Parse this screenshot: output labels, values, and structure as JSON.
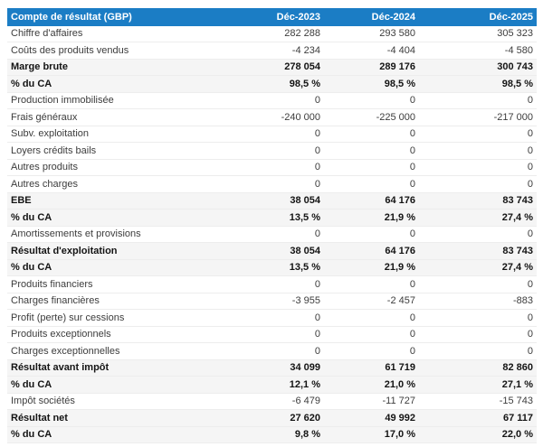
{
  "table": {
    "header": {
      "label": "Compte de résultat (GBP)",
      "col1": "Déc-2023",
      "col2": "Déc-2024",
      "col3": "Déc-2025"
    },
    "rows": [
      {
        "label": "Chiffre d'affaires",
        "values": [
          "282 288",
          "293 580",
          "305 323"
        ],
        "emphasis": false
      },
      {
        "label": "Coûts des produits vendus",
        "values": [
          "-4 234",
          "-4 404",
          "-4 580"
        ],
        "emphasis": false
      },
      {
        "label": "Marge brute",
        "values": [
          "278 054",
          "289 176",
          "300 743"
        ],
        "emphasis": true
      },
      {
        "label": "% du CA",
        "values": [
          "98,5 %",
          "98,5 %",
          "98,5 %"
        ],
        "emphasis": true
      },
      {
        "label": "Production immobilisée",
        "values": [
          "0",
          "0",
          "0"
        ],
        "emphasis": false
      },
      {
        "label": "Frais généraux",
        "values": [
          "-240 000",
          "-225 000",
          "-217 000"
        ],
        "emphasis": false
      },
      {
        "label": "Subv. exploitation",
        "values": [
          "0",
          "0",
          "0"
        ],
        "emphasis": false
      },
      {
        "label": "Loyers crédits bails",
        "values": [
          "0",
          "0",
          "0"
        ],
        "emphasis": false
      },
      {
        "label": "Autres produits",
        "values": [
          "0",
          "0",
          "0"
        ],
        "emphasis": false
      },
      {
        "label": "Autres charges",
        "values": [
          "0",
          "0",
          "0"
        ],
        "emphasis": false
      },
      {
        "label": "EBE",
        "values": [
          "38 054",
          "64 176",
          "83 743"
        ],
        "emphasis": true
      },
      {
        "label": "% du CA",
        "values": [
          "13,5 %",
          "21,9 %",
          "27,4 %"
        ],
        "emphasis": true
      },
      {
        "label": "Amortissements et provisions",
        "values": [
          "0",
          "0",
          "0"
        ],
        "emphasis": false
      },
      {
        "label": "Résultat d'exploitation",
        "values": [
          "38 054",
          "64 176",
          "83 743"
        ],
        "emphasis": true
      },
      {
        "label": "% du CA",
        "values": [
          "13,5 %",
          "21,9 %",
          "27,4 %"
        ],
        "emphasis": true
      },
      {
        "label": "Produits financiers",
        "values": [
          "0",
          "0",
          "0"
        ],
        "emphasis": false
      },
      {
        "label": "Charges financières",
        "values": [
          "-3 955",
          "-2 457",
          "-883"
        ],
        "emphasis": false
      },
      {
        "label": "Profit (perte) sur cessions",
        "values": [
          "0",
          "0",
          "0"
        ],
        "emphasis": false
      },
      {
        "label": "Produits exceptionnels",
        "values": [
          "0",
          "0",
          "0"
        ],
        "emphasis": false
      },
      {
        "label": "Charges exceptionnelles",
        "values": [
          "0",
          "0",
          "0"
        ],
        "emphasis": false
      },
      {
        "label": "Résultat avant impôt",
        "values": [
          "34 099",
          "61 719",
          "82 860"
        ],
        "emphasis": true
      },
      {
        "label": "% du CA",
        "values": [
          "12,1 %",
          "21,0 %",
          "27,1 %"
        ],
        "emphasis": true
      },
      {
        "label": "Impôt sociétés",
        "values": [
          "-6 479",
          "-11 727",
          "-15 743"
        ],
        "emphasis": false
      },
      {
        "label": "Résultat net",
        "values": [
          "27 620",
          "49 992",
          "67 117"
        ],
        "emphasis": true
      },
      {
        "label": "% du CA",
        "values": [
          "9,8 %",
          "17,0 %",
          "22,0 %"
        ],
        "emphasis": true
      }
    ]
  },
  "colors": {
    "header_bg": "#1b7dc5",
    "header_text": "#ffffff",
    "row_alt_bg": "#f5f5f5",
    "text": "#3c3c3c",
    "text_bold": "#141414",
    "row_border": "#ededed"
  },
  "chart_data": {
    "type": "table",
    "title": "Compte de résultat (GBP)",
    "columns": [
      "Compte de résultat (GBP)",
      "Déc-2023",
      "Déc-2024",
      "Déc-2025"
    ],
    "rows": [
      {
        "label": "Chiffre d'affaires",
        "values": [
          282288,
          293580,
          305323
        ]
      },
      {
        "label": "Coûts des produits vendus",
        "values": [
          -4234,
          -4404,
          -4580
        ]
      },
      {
        "label": "Marge brute",
        "values": [
          278054,
          289176,
          300743
        ]
      },
      {
        "label": "% du CA",
        "values": [
          98.5,
          98.5,
          98.5
        ],
        "unit": "%"
      },
      {
        "label": "Production immobilisée",
        "values": [
          0,
          0,
          0
        ]
      },
      {
        "label": "Frais généraux",
        "values": [
          -240000,
          -225000,
          -217000
        ]
      },
      {
        "label": "Subv. exploitation",
        "values": [
          0,
          0,
          0
        ]
      },
      {
        "label": "Loyers crédits bails",
        "values": [
          0,
          0,
          0
        ]
      },
      {
        "label": "Autres produits",
        "values": [
          0,
          0,
          0
        ]
      },
      {
        "label": "Autres charges",
        "values": [
          0,
          0,
          0
        ]
      },
      {
        "label": "EBE",
        "values": [
          38054,
          64176,
          83743
        ]
      },
      {
        "label": "% du CA",
        "values": [
          13.5,
          21.9,
          27.4
        ],
        "unit": "%"
      },
      {
        "label": "Amortissements et provisions",
        "values": [
          0,
          0,
          0
        ]
      },
      {
        "label": "Résultat d'exploitation",
        "values": [
          38054,
          64176,
          83743
        ]
      },
      {
        "label": "% du CA",
        "values": [
          13.5,
          21.9,
          27.4
        ],
        "unit": "%"
      },
      {
        "label": "Produits financiers",
        "values": [
          0,
          0,
          0
        ]
      },
      {
        "label": "Charges financières",
        "values": [
          -3955,
          -2457,
          -883
        ]
      },
      {
        "label": "Profit (perte) sur cessions",
        "values": [
          0,
          0,
          0
        ]
      },
      {
        "label": "Produits exceptionnels",
        "values": [
          0,
          0,
          0
        ]
      },
      {
        "label": "Charges exceptionnelles",
        "values": [
          0,
          0,
          0
        ]
      },
      {
        "label": "Résultat avant impôt",
        "values": [
          34099,
          61719,
          82860
        ]
      },
      {
        "label": "% du CA",
        "values": [
          12.1,
          21.0,
          27.1
        ],
        "unit": "%"
      },
      {
        "label": "Impôt sociétés",
        "values": [
          -6479,
          -11727,
          -15743
        ]
      },
      {
        "label": "Résultat net",
        "values": [
          27620,
          49992,
          67117
        ]
      },
      {
        "label": "% du CA",
        "values": [
          9.8,
          17.0,
          22.0
        ],
        "unit": "%"
      }
    ]
  }
}
